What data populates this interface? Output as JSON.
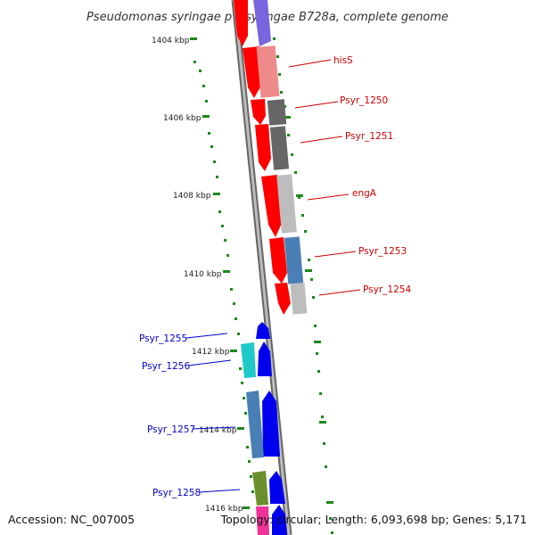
{
  "title": "Pseudomonas syringae pv. syringae B728a, complete genome",
  "footer": {
    "accession": "Accession: NC_007005",
    "summary": "Topology: circular; Length: 6,093,698 bp; Genes: 5,171"
  },
  "colors": {
    "reverse_strand_label": "#cc0000",
    "forward_strand_label": "#0000cc",
    "tick_mark": "#1a8a1a",
    "backbone": "#888888"
  },
  "ticks": [
    "1404 kbp",
    "1406 kbp",
    "1408 kbp",
    "1410 kbp",
    "1412 kbp",
    "1414 kbp",
    "1416 kbp"
  ],
  "genes": [
    {
      "name": "hisS",
      "strand": "reverse"
    },
    {
      "name": "Psyr_1250",
      "strand": "reverse"
    },
    {
      "name": "Psyr_1251",
      "strand": "reverse"
    },
    {
      "name": "engA",
      "strand": "reverse"
    },
    {
      "name": "Psyr_1253",
      "strand": "reverse"
    },
    {
      "name": "Psyr_1254",
      "strand": "reverse"
    },
    {
      "name": "Psyr_1255",
      "strand": "forward"
    },
    {
      "name": "Psyr_1256",
      "strand": "forward"
    },
    {
      "name": "Psyr_1257",
      "strand": "forward"
    },
    {
      "name": "Psyr_1258",
      "strand": "forward"
    }
  ]
}
